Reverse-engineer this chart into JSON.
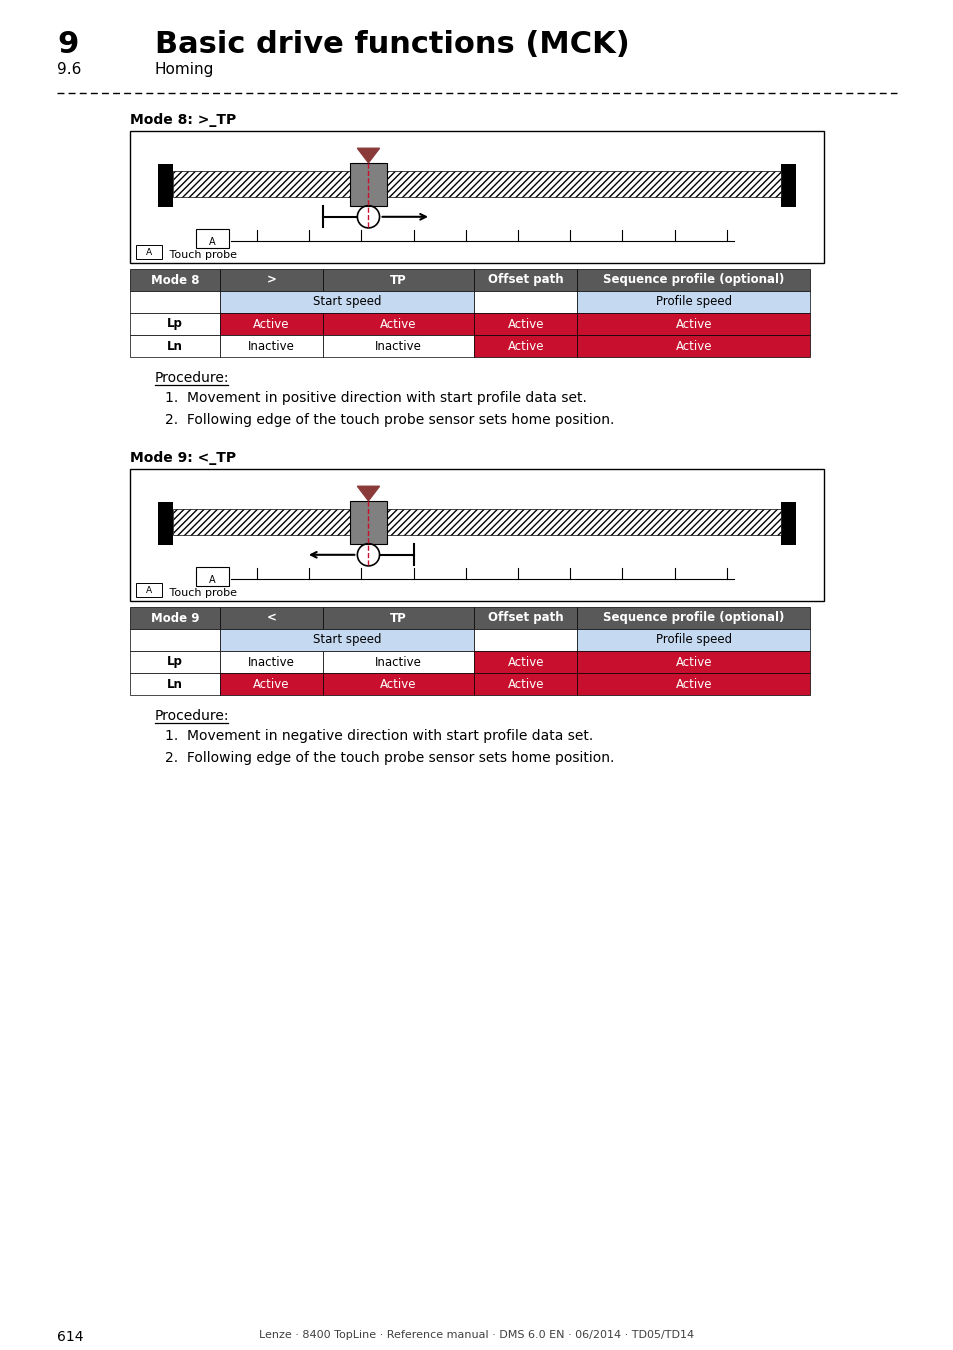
{
  "title_num": "9",
  "title_text": "Basic drive functions (MCK)",
  "subtitle_num": "9.6",
  "subtitle_text": "Homing",
  "mode8_label": "Mode 8: >_TP",
  "mode9_label": "Mode 9: <_TP",
  "table8_header": [
    "Mode 8",
    ">",
    "TP",
    "Offset path",
    "Sequence profile (optional)"
  ],
  "table8_row1": [
    "Lp",
    "Active",
    "Active",
    "Active",
    "Active"
  ],
  "table8_row2": [
    "Ln",
    "Inactive",
    "Inactive",
    "Active",
    "Active"
  ],
  "table9_header": [
    "Mode 9",
    "<",
    "TP",
    "Offset path",
    "Sequence profile (optional)"
  ],
  "table9_row1": [
    "Lp",
    "Inactive",
    "Inactive",
    "Active",
    "Active"
  ],
  "table9_row2": [
    "Ln",
    "Active",
    "Active",
    "Active",
    "Active"
  ],
  "procedure8_title": "Procedure:",
  "procedure8_items": [
    "1.  Movement in positive direction with start profile data set.",
    "2.  Following edge of the touch probe sensor sets home position."
  ],
  "procedure9_title": "Procedure:",
  "procedure9_items": [
    "1.  Movement in negative direction with start profile data set.",
    "2.  Following edge of the touch probe sensor sets home position."
  ],
  "footer_page": "614",
  "footer_text": "Lenze · 8400 TopLine · Reference manual · DMS 6.0 EN · 06/2014 · TD05/TD14",
  "color_red": "#C8102E",
  "color_subheader": "#C5D9F1",
  "color_table_header": "#595959"
}
